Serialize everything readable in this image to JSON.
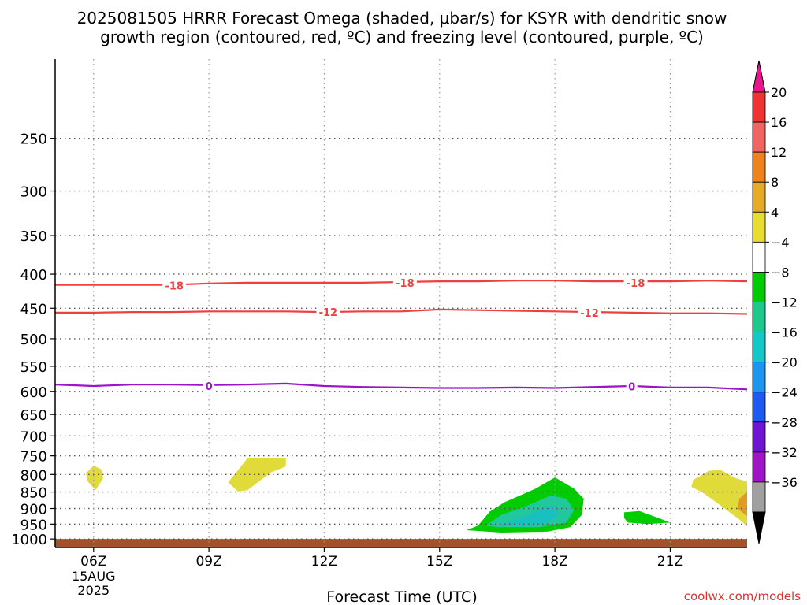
{
  "chart_data": {
    "type": "heatmap",
    "title_line1": "2025081505 HRRR Forecast Omega (shaded, μbar/s) for KSYR with dendritic snow",
    "title_line2": "growth region (contoured, red, ºC) and freezing level (contoured, purple, ºC)",
    "xlabel": "Forecast Time (UTC)",
    "ylabel": "",
    "watermark": "coolwx.com/models",
    "x_hour_range": [
      5,
      23
    ],
    "y_pressure_range": [
      1030,
      190
    ],
    "x_ticks": [
      {
        "hour": 6,
        "label": "06Z",
        "sub1": "15AUG",
        "sub2": "2025"
      },
      {
        "hour": 9,
        "label": "09Z"
      },
      {
        "hour": 12,
        "label": "12Z"
      },
      {
        "hour": 15,
        "label": "15Z"
      },
      {
        "hour": 18,
        "label": "18Z"
      },
      {
        "hour": 21,
        "label": "21Z"
      }
    ],
    "y_ticks": [
      250,
      300,
      350,
      400,
      450,
      500,
      550,
      600,
      650,
      700,
      750,
      800,
      850,
      900,
      950,
      1000
    ],
    "grid": true,
    "surface_fill": {
      "color": "#a0522d",
      "p_top": 1000
    },
    "contours": [
      {
        "name": "-18",
        "color": "#ef4040",
        "points": [
          [
            5,
            415
          ],
          [
            6,
            415
          ],
          [
            7,
            415
          ],
          [
            8,
            415
          ],
          [
            9,
            413
          ],
          [
            10,
            412
          ],
          [
            11,
            412
          ],
          [
            12,
            412
          ],
          [
            13,
            412
          ],
          [
            14,
            411
          ],
          [
            15,
            410
          ],
          [
            16,
            410
          ],
          [
            17,
            409
          ],
          [
            18,
            409
          ],
          [
            19,
            410
          ],
          [
            20,
            410
          ],
          [
            21,
            410
          ],
          [
            22,
            409
          ],
          [
            23,
            410
          ]
        ],
        "labels": [
          {
            "x": 8.1,
            "p": 416,
            "text": "-18"
          },
          {
            "x": 14.1,
            "p": 412,
            "text": "-18"
          },
          {
            "x": 20.1,
            "p": 412,
            "text": "-18"
          }
        ]
      },
      {
        "name": "-12",
        "color": "#ef4040",
        "points": [
          [
            5,
            457
          ],
          [
            6,
            457
          ],
          [
            7,
            456
          ],
          [
            8,
            456
          ],
          [
            9,
            455
          ],
          [
            10,
            455
          ],
          [
            11,
            455
          ],
          [
            12,
            456
          ],
          [
            13,
            455
          ],
          [
            14,
            455
          ],
          [
            15,
            452
          ],
          [
            16,
            453
          ],
          [
            17,
            454
          ],
          [
            18,
            455
          ],
          [
            19,
            456
          ],
          [
            20,
            457
          ],
          [
            21,
            458
          ],
          [
            22,
            458
          ],
          [
            23,
            459
          ]
        ],
        "labels": [
          {
            "x": 12.1,
            "p": 456,
            "text": "-12"
          },
          {
            "x": 18.9,
            "p": 457,
            "text": "-12"
          }
        ]
      },
      {
        "name": "0",
        "color": "#9b14c8",
        "points": [
          [
            5,
            586
          ],
          [
            6,
            589
          ],
          [
            7,
            586
          ],
          [
            8,
            586
          ],
          [
            9,
            587
          ],
          [
            10,
            586
          ],
          [
            11,
            584
          ],
          [
            12,
            589
          ],
          [
            13,
            591
          ],
          [
            14,
            592
          ],
          [
            15,
            593
          ],
          [
            16,
            593
          ],
          [
            17,
            592
          ],
          [
            18,
            593
          ],
          [
            19,
            591
          ],
          [
            20,
            589
          ],
          [
            21,
            592
          ],
          [
            22,
            592
          ],
          [
            23,
            596
          ]
        ],
        "labels": [
          {
            "x": 9,
            "p": 589,
            "text": "0"
          },
          {
            "x": 20,
            "p": 590,
            "text": "0"
          }
        ]
      }
    ],
    "shaded_regions": [
      {
        "level": "4 to 8",
        "color": "#e1db3a",
        "points": [
          [
            5.8,
            796
          ],
          [
            6.0,
            776
          ],
          [
            6.2,
            786
          ],
          [
            6.25,
            810
          ],
          [
            6.05,
            845
          ],
          [
            5.85,
            820
          ]
        ]
      },
      {
        "level": "4 to 8",
        "color": "#e1db3a",
        "points": [
          [
            10.0,
            757
          ],
          [
            11.0,
            757
          ],
          [
            11.0,
            778
          ],
          [
            10.6,
            795
          ],
          [
            10.0,
            845
          ],
          [
            9.75,
            848
          ],
          [
            9.5,
            822
          ]
        ]
      },
      {
        "level": "4 to 8",
        "color": "#e1db3a",
        "points": [
          [
            21.6,
            815
          ],
          [
            22.0,
            790
          ],
          [
            22.3,
            787
          ],
          [
            22.7,
            810
          ],
          [
            23.0,
            820
          ],
          [
            23.0,
            958
          ],
          [
            22.8,
            935
          ],
          [
            22.3,
            890
          ],
          [
            21.85,
            852
          ],
          [
            21.55,
            835
          ]
        ]
      },
      {
        "level": "8 to 12",
        "color": "#e09b25",
        "points": [
          [
            23.0,
            848
          ],
          [
            23.0,
            925
          ],
          [
            22.75,
            900
          ],
          [
            22.8,
            870
          ]
        ]
      },
      {
        "level": "-4 to -8",
        "color": "#00cc00",
        "points": [
          [
            16.0,
            955
          ],
          [
            16.3,
            910
          ],
          [
            16.7,
            880
          ],
          [
            17.5,
            840
          ],
          [
            18.0,
            808
          ],
          [
            18.5,
            840
          ],
          [
            18.75,
            870
          ],
          [
            18.7,
            920
          ],
          [
            18.4,
            960
          ],
          [
            17.8,
            975
          ],
          [
            16.6,
            978
          ],
          [
            15.7,
            970
          ]
        ]
      },
      {
        "level": "-8 to -12",
        "color": "#20c89c",
        "points": [
          [
            16.2,
            955
          ],
          [
            16.6,
            920
          ],
          [
            17.2,
            895
          ],
          [
            17.9,
            860
          ],
          [
            18.3,
            870
          ],
          [
            18.5,
            905
          ],
          [
            18.3,
            945
          ],
          [
            17.6,
            960
          ],
          [
            16.5,
            960
          ]
        ]
      },
      {
        "level": "-12 to -16",
        "color": "#18c0c0",
        "points": [
          [
            16.6,
            952
          ],
          [
            17.1,
            930
          ],
          [
            17.7,
            900
          ],
          [
            18.0,
            890
          ],
          [
            18.1,
            920
          ],
          [
            17.8,
            945
          ],
          [
            17.1,
            955
          ]
        ]
      },
      {
        "level": "-4 to -8",
        "color": "#00cc00",
        "points": [
          [
            19.8,
            912
          ],
          [
            20.2,
            908
          ],
          [
            20.8,
            935
          ],
          [
            21.0,
            945
          ],
          [
            20.4,
            950
          ],
          [
            19.9,
            945
          ],
          [
            19.8,
            930
          ]
        ]
      }
    ],
    "colorbar": {
      "levels": [
        "20",
        "16",
        "12",
        "8",
        "4",
        "−4",
        "−8",
        "−12",
        "−16",
        "−20",
        "−24",
        "−28",
        "−32",
        "−36"
      ],
      "colors": [
        "#f03232",
        "#f06464",
        "#f0821e",
        "#e6aa28",
        "#e6dc32",
        "#ffffff",
        "#00cc00",
        "#1ec88c",
        "#14c8c8",
        "#1e96f0",
        "#1e5af0",
        "#6e14d2",
        "#a014c8",
        "#a0a0a0"
      ],
      "top_arrow_color": "#e8158c",
      "bottom_arrow_color": "#000000"
    }
  }
}
